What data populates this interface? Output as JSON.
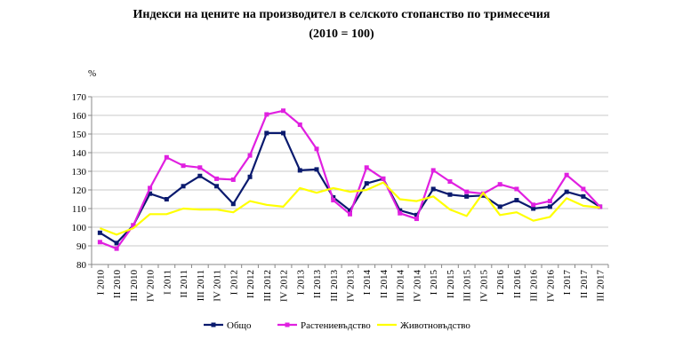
{
  "chart_data": {
    "type": "line",
    "title": "Индекси на цените на производител в селското стопанство по тримесечия",
    "subtitle": "(2010 = 100)",
    "ylabel": "%",
    "xlabel": "",
    "ylim": [
      80,
      170
    ],
    "yticks": [
      80,
      90,
      100,
      110,
      120,
      130,
      140,
      150,
      160,
      170
    ],
    "grid": "horizontal",
    "legend_position": "bottom",
    "categories": [
      "I 2010",
      "II 2010",
      "III 2010",
      "IV 2010",
      "I 2011",
      "II 2011",
      "III 2011",
      "IV 2011",
      "I 2012",
      "II 2012",
      "III 2012",
      "IV 2012",
      "I 2013",
      "II 2013",
      "III 2013",
      "IV 2013",
      "I 2014",
      "II 2014",
      "III 2014",
      "IV 2014",
      "I 2015",
      "II 2015",
      "III 2015",
      "IV 2015",
      "I 2016",
      "II 2016",
      "III 2016",
      "IV 2016",
      "I 2017",
      "II 2017",
      "III 2017"
    ],
    "series": [
      {
        "name": "Общо",
        "color": "#0a1a6e",
        "marker": "square",
        "values": [
          97,
          91.5,
          101,
          118,
          115,
          122,
          127.5,
          122,
          112.5,
          127,
          150.5,
          150.5,
          130.5,
          131,
          116,
          109,
          123.5,
          126,
          109,
          106.5,
          120.5,
          117.5,
          116.5,
          117,
          111,
          114.5,
          110,
          111,
          119,
          116.5,
          111
        ]
      },
      {
        "name": "Растениевъдство",
        "color": "#e020e0",
        "marker": "square",
        "values": [
          92,
          88.5,
          101,
          121,
          137.5,
          133,
          132,
          126,
          125.5,
          138.5,
          160.5,
          162.5,
          155,
          142,
          114.5,
          107,
          132,
          126,
          107.5,
          104.5,
          130.5,
          124.5,
          119,
          118,
          123,
          120.5,
          112,
          114,
          128,
          120.5,
          111
        ]
      },
      {
        "name": "Животновъдство",
        "color": "#ffff00",
        "marker": "none",
        "values": [
          99.5,
          96,
          99.5,
          107,
          107,
          110,
          109.5,
          109.5,
          108,
          114,
          112,
          111,
          121,
          118.5,
          121,
          119,
          120,
          124,
          115,
          114,
          116.5,
          109.5,
          106,
          118.5,
          106.5,
          108,
          103.5,
          105.5,
          115.5,
          111.5,
          110.5
        ]
      }
    ]
  }
}
